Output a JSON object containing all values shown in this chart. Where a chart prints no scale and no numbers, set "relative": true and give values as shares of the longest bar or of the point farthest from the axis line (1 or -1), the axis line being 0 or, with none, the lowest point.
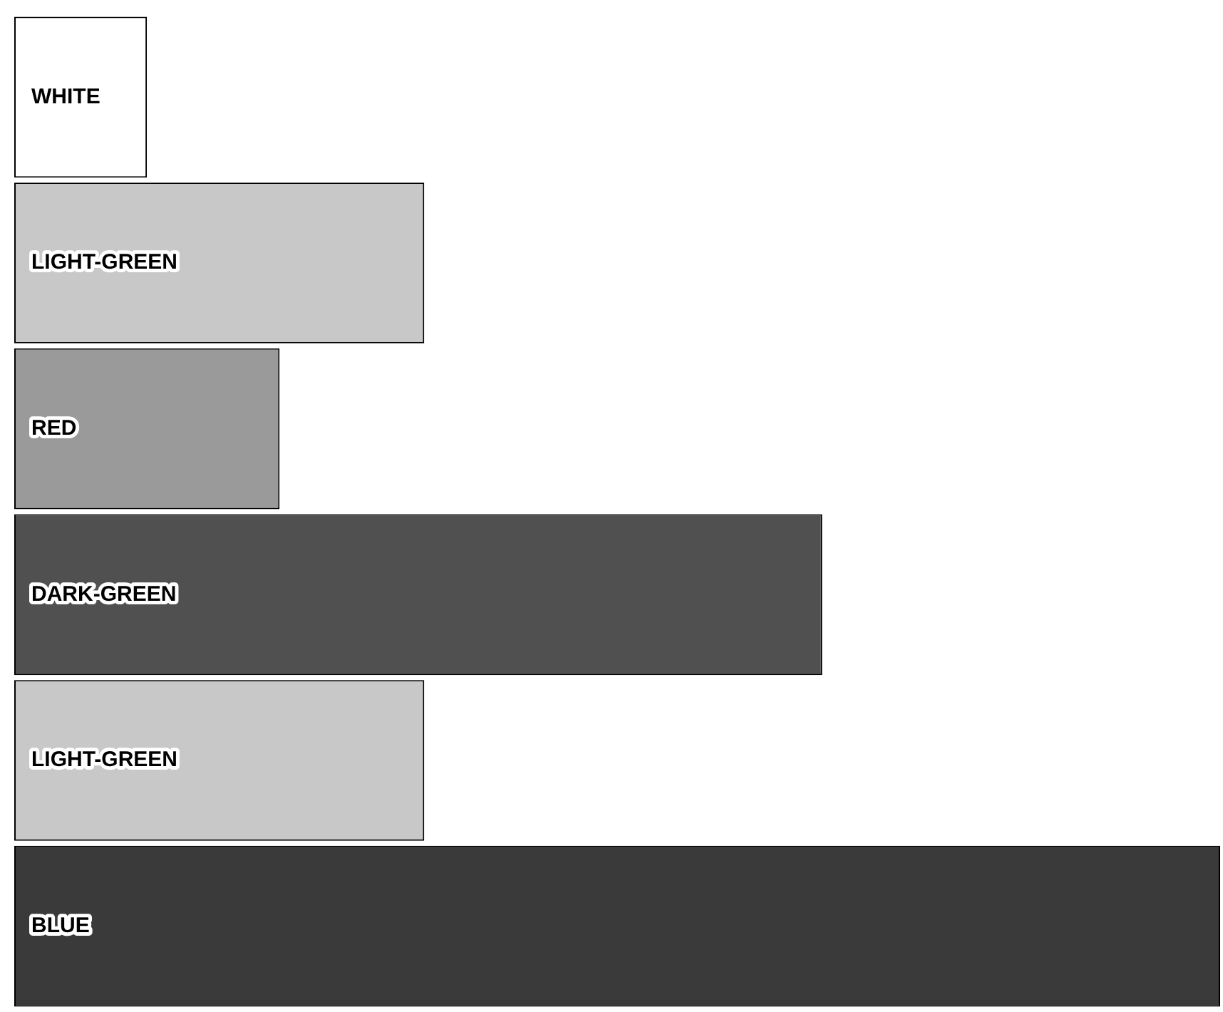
{
  "chart_data": {
    "type": "bar",
    "orientation": "horizontal",
    "relative": true,
    "tick_labels": false,
    "legend": false,
    "categories": [
      "WHITE",
      "LIGHT-GREEN",
      "RED",
      "DARK-GREEN",
      "LIGHT-GREEN",
      "BLUE"
    ],
    "values": [
      0.11,
      0.34,
      0.22,
      0.67,
      0.34,
      1
    ],
    "colors": [
      "#ffffff",
      "#c8c8c8",
      "#9a9a9a",
      "#505050",
      "#c8c8c8",
      "#3a3a3a"
    ]
  }
}
